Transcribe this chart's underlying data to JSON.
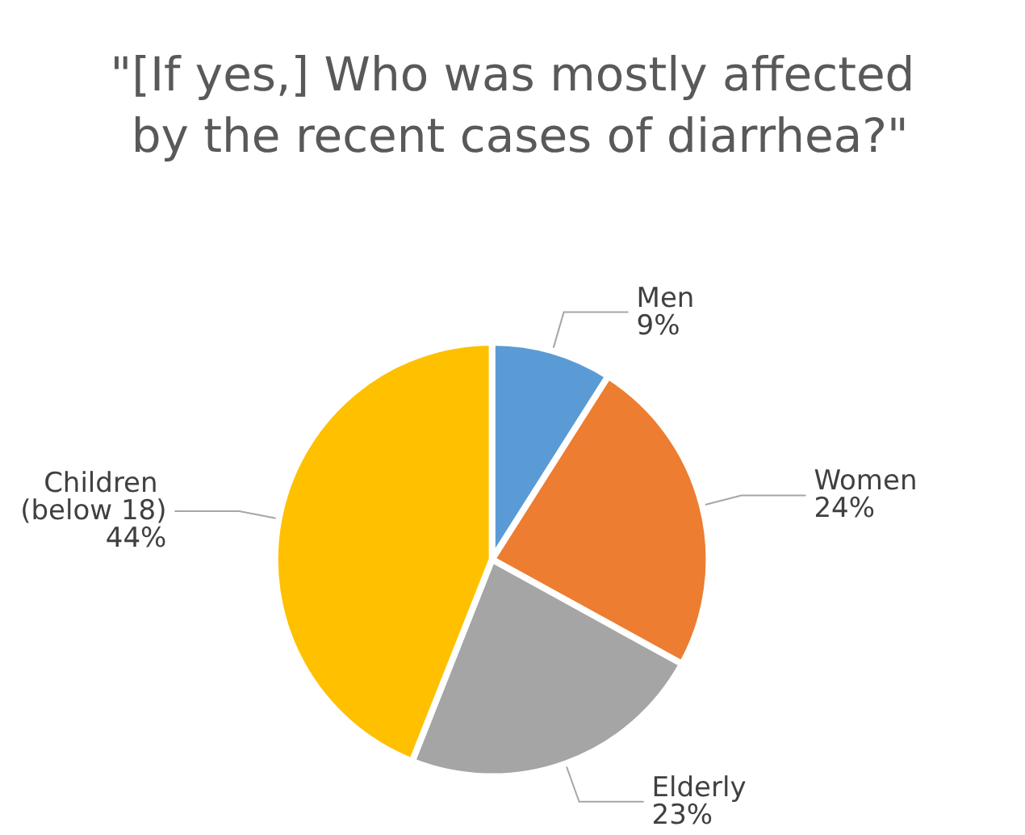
{
  "chart_data": {
    "type": "pie",
    "title": "\"[If yes,] Who was mostly affected by the recent cases of diarrhea?\"",
    "categories": [
      "Men",
      "Women",
      "Elderly",
      "Children (below 18)"
    ],
    "values": [
      9,
      24,
      23,
      44
    ],
    "value_labels": [
      "9%",
      "24%",
      "23%",
      "44%"
    ],
    "colors": [
      "#5b9bd5",
      "#ed7d31",
      "#a5a5a5",
      "#ffc000"
    ],
    "legend": false
  }
}
